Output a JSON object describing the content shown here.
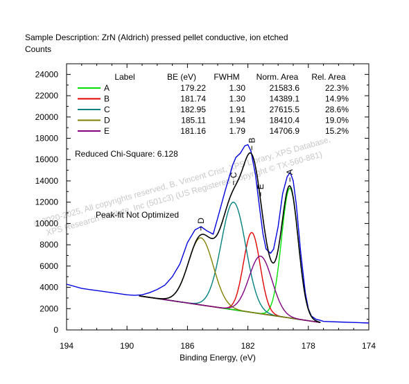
{
  "header": {
    "description": "Sample Description:   ZrN (Aldrich) pressed pellet conductive, ion etched",
    "ylabel": "Counts"
  },
  "note_chi": "Reduced Chi-Square: 6.128",
  "note_fit": "Peak-fit Not Optimized",
  "watermark": {
    "line1": "© 2020-2025,  All copyrights reserved,   B. Vincent Crist, XPS Library, XPS Database,",
    "line2": "XPS Research Institute, Inc (501c3)   (US Registered Copyright © TX-560-881)"
  },
  "legend_table": {
    "headers": [
      "Label",
      "BE (eV)",
      "FWHM",
      "Norm. Area",
      "Rel. Area"
    ],
    "rows": [
      {
        "label": "A",
        "be": "179.22",
        "fwhm": "1.30",
        "area": "21583.6",
        "rel": "22.3%",
        "color": "#00e000"
      },
      {
        "label": "B",
        "be": "181.74",
        "fwhm": "1.30",
        "area": "14389.1",
        "rel": "14.9%",
        "color": "#e00000"
      },
      {
        "label": "C",
        "be": "182.95",
        "fwhm": "1.91",
        "area": "27615.5",
        "rel": "28.6%",
        "color": "#008080"
      },
      {
        "label": "D",
        "be": "185.11",
        "fwhm": "1.94",
        "area": "18410.4",
        "rel": "19.0%",
        "color": "#808000"
      },
      {
        "label": "E",
        "be": "181.16",
        "fwhm": "1.79",
        "area": "14706.9",
        "rel": "15.2%",
        "color": "#800080"
      }
    ]
  },
  "chart_data": {
    "type": "line",
    "title": "",
    "xlabel": "Binding Energy, (eV)",
    "ylabel": "Counts",
    "xlim": [
      194,
      174
    ],
    "ylim": [
      0,
      25000
    ],
    "x_reversed": true,
    "xticks": [
      194,
      190,
      186,
      182,
      178,
      174
    ],
    "yticks": [
      0,
      2000,
      4000,
      6000,
      8000,
      10000,
      12000,
      14000,
      16000,
      18000,
      20000,
      22000,
      24000
    ],
    "peak_markers": [
      "A",
      "B",
      "C",
      "D",
      "E"
    ],
    "background": {
      "x": [
        189.2,
        177.2
      ],
      "y": [
        3200,
        700
      ]
    },
    "peaks": [
      {
        "name": "A",
        "center": 179.22,
        "height": 12200,
        "fwhm": 1.3,
        "color": "#00e000"
      },
      {
        "name": "B",
        "center": 181.74,
        "height": 7500,
        "fwhm": 1.3,
        "color": "#e00000"
      },
      {
        "name": "C",
        "center": 182.95,
        "height": 10100,
        "fwhm": 1.91,
        "color": "#008080"
      },
      {
        "name": "D",
        "center": 185.11,
        "height": 6300,
        "fwhm": 1.94,
        "color": "#808000"
      },
      {
        "name": "E",
        "center": 181.16,
        "height": 5400,
        "fwhm": 1.79,
        "color": "#800080"
      }
    ],
    "raw_data": {
      "color": "#0000e0",
      "x": [
        194,
        193,
        192,
        191,
        190,
        189.5,
        189,
        188.5,
        188,
        187.5,
        187,
        186.5,
        186,
        185.5,
        185.1,
        184.7,
        184.3,
        184,
        183.5,
        183,
        182.8,
        182.5,
        182.2,
        182,
        181.8,
        181.5,
        181.2,
        181,
        180.8,
        180.5,
        180.3,
        180,
        179.7,
        179.4,
        179.2,
        179,
        178.8,
        178.5,
        178.2,
        178,
        177.8,
        177.5,
        177.2,
        177,
        176,
        175,
        174
      ],
      "y": [
        4300,
        3900,
        3700,
        3500,
        3300,
        3250,
        3300,
        3500,
        3800,
        4200,
        5000,
        6200,
        8200,
        9400,
        9700,
        9300,
        9000,
        10500,
        13100,
        15500,
        16200,
        16600,
        17300,
        17400,
        16800,
        14600,
        11200,
        9000,
        7600,
        7200,
        7600,
        9700,
        12800,
        14400,
        14800,
        14000,
        11800,
        7200,
        3500,
        2000,
        1300,
        1000,
        900,
        800,
        750,
        700,
        650
      ]
    },
    "envelope_color": "#000000"
  }
}
